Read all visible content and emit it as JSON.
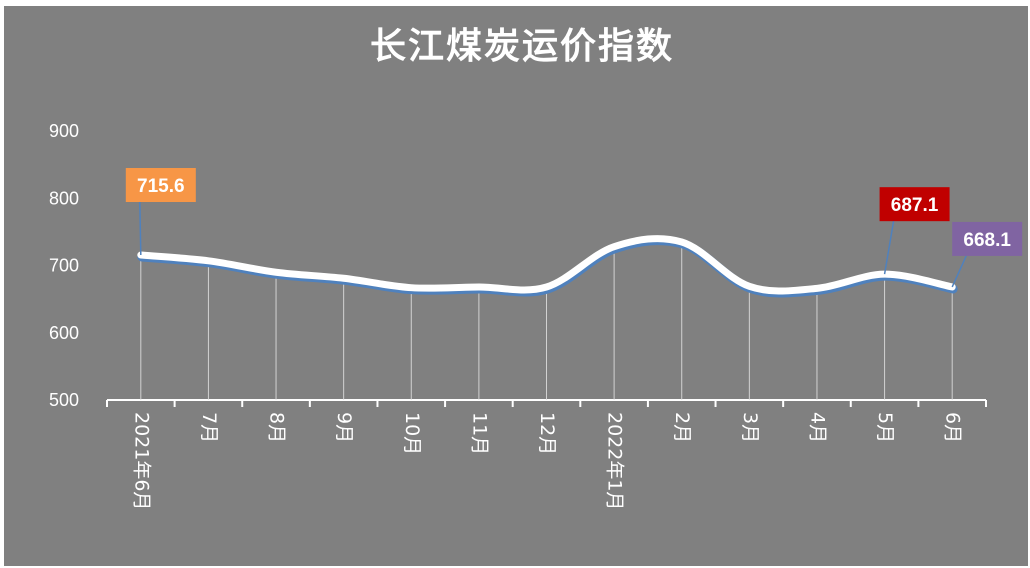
{
  "chart_data": {
    "type": "line",
    "title": "长江煤炭运价指数",
    "categories": [
      "2021年6月",
      "7月",
      "8月",
      "9月",
      "10月",
      "11月",
      "12月",
      "2022年1月",
      "2月",
      "3月",
      "4月",
      "5月",
      "6月"
    ],
    "series": [
      {
        "values": [
          715.6,
          707,
          690,
          681,
          667,
          668,
          668,
          728,
          735,
          669,
          666,
          687.1,
          668.1
        ]
      }
    ],
    "ylim": [
      500,
      900
    ],
    "yticks": [
      500,
      600,
      700,
      800,
      900
    ],
    "grid": false,
    "callouts": [
      {
        "index": 0,
        "label": "715.6",
        "color": "#f79646"
      },
      {
        "index": 11,
        "label": "687.1",
        "color": "#c00000"
      },
      {
        "index": 12,
        "label": "668.1",
        "color": "#8064a2"
      }
    ],
    "colors": {
      "background": "#808080",
      "line": "#ffffff",
      "line_shadow": "#4f81bd",
      "drop_lines": "#e0e0e0"
    }
  }
}
